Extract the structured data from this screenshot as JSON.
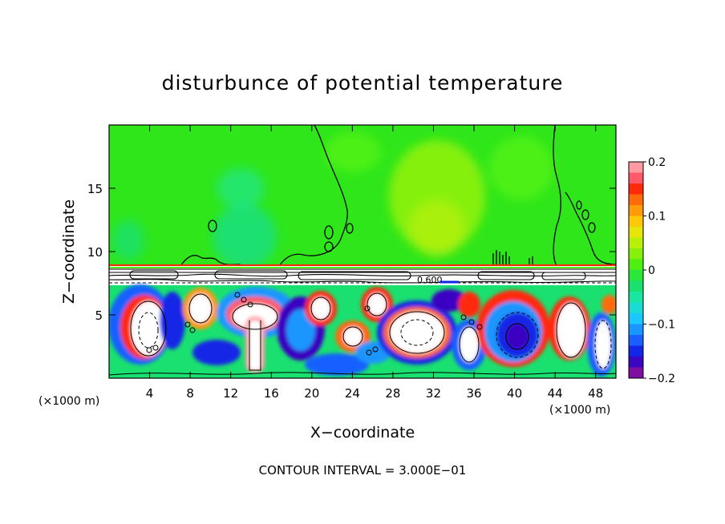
{
  "chart_data": {
    "type": "heatmap",
    "title": "disturbunce of potential temperature",
    "xlabel": "X−coordinate",
    "ylabel": "Z−coordinate",
    "x_unit_left": "(×1000 m)",
    "x_unit_right": "(×1000 m)",
    "xlim": [
      0,
      50
    ],
    "ylim": [
      0,
      20
    ],
    "x_ticks": [
      4,
      8,
      12,
      16,
      20,
      24,
      28,
      32,
      36,
      40,
      44,
      48
    ],
    "y_ticks": [
      5,
      10,
      15
    ],
    "colorbar": {
      "ticks": [
        0.2,
        0.1,
        0,
        -0.1,
        -0.2
      ],
      "tick_labels": [
        "0.2",
        "0.1",
        "0",
        "−0.1",
        "−0.2"
      ],
      "levels": [
        -0.2,
        -0.18,
        -0.16,
        -0.14,
        -0.12,
        -0.1,
        -0.08,
        -0.06,
        -0.04,
        -0.02,
        0,
        0.02,
        0.04,
        0.06,
        0.08,
        0.1,
        0.12,
        0.14,
        0.16,
        0.18,
        0.2
      ],
      "colors": [
        "#7f0fa3",
        "#3a06c2",
        "#1226e6",
        "#1960ff",
        "#1a96ff",
        "#1ac8ff",
        "#1adcd2",
        "#1ae6a0",
        "#1ae070",
        "#2ae83a",
        "#4ef012",
        "#86f00c",
        "#b8f00a",
        "#e6e60a",
        "#ffc80a",
        "#ff9a0a",
        "#ff6a0a",
        "#ff2a0a",
        "#ff5a6a",
        "#ff9aa0"
      ]
    },
    "contour_label": "0.600",
    "footer": "CONTOUR INTERVAL = 3.000E−01",
    "contour_interval": 0.3,
    "grid": false,
    "regions": {
      "upper_background": 0.01,
      "upper_cyan_patch": -0.04,
      "upper_yellow_patch": 0.05,
      "inversion_layer_z": [
        7.5,
        9.0
      ],
      "turbulent_layer_z": [
        0,
        7.5
      ],
      "vortex_peak_negative": -0.2,
      "vortex_peak_positive": 0.2
    }
  }
}
